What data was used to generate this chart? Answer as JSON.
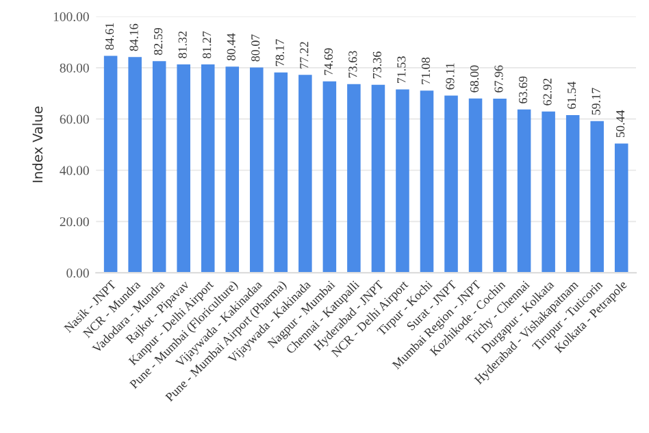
{
  "chart_data": {
    "type": "bar",
    "ylabel": "Index Value",
    "categories": [
      "Nasik - JNPT",
      "NCR - Mundra",
      "Vadodara - Mundra",
      "Rajkot - Pipavav",
      "Kanpur - Delhi Airport",
      "Pune - Mumbai (Floriculture)",
      "Vijaywada - Kakinadaa",
      "Pune - Mumbai Airport (Pharma)",
      "Vijaywada - Kakinada",
      "Nagpur - Mumbai",
      "Chennai - Katupalli",
      "Hyderabad - JNPT",
      "NCR - Delhi Airport",
      "Tirpur - Kochi",
      "Surat - JNPT",
      "Mumbai Region - JNPT",
      "Kozhikode - Cochin",
      "Trichy - Chennai",
      "Durgapur - Kolkata",
      "Hyderabad - Vishakapatnam",
      "Tirupur - Tuticorin",
      "Kolkata - Petrapole"
    ],
    "values": [
      84.61,
      84.16,
      82.59,
      81.32,
      81.27,
      80.44,
      80.07,
      78.17,
      77.22,
      74.69,
      73.63,
      73.36,
      71.53,
      71.08,
      69.11,
      68.0,
      67.96,
      63.69,
      62.92,
      61.54,
      59.17,
      50.44
    ],
    "value_labels": [
      "84.61",
      "84.16",
      "82.59",
      "81.32",
      "81.27",
      "80.44",
      "80.07",
      "78.17",
      "77.22",
      "74.69",
      "73.63",
      "73.36",
      "71.53",
      "71.08",
      "69.11",
      "68.00",
      "67.96",
      "63.69",
      "62.92",
      "61.54",
      "59.17",
      "50.44"
    ],
    "color": "#4a8be8",
    "ylim": [
      0,
      100
    ],
    "yticks": [
      {
        "value": 0,
        "label": "0.00"
      },
      {
        "value": 20,
        "label": "20.00"
      },
      {
        "value": 40,
        "label": "40.00"
      },
      {
        "value": 60,
        "label": "60.00"
      },
      {
        "value": 80,
        "label": "80.00"
      },
      {
        "value": 100,
        "label": "100.00"
      }
    ],
    "grid": "y"
  }
}
